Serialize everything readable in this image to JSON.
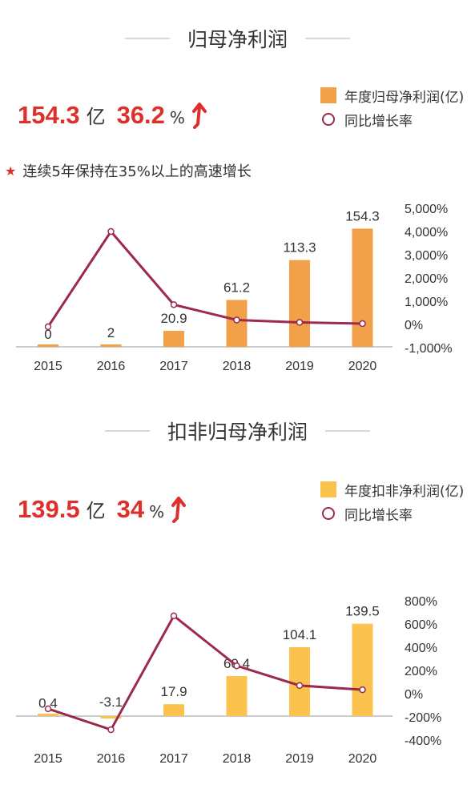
{
  "section1": {
    "title": "归母净利润",
    "kpi_value": "154.3",
    "kpi_unit": "亿",
    "kpi_growth": "36.2",
    "kpi_growth_unit": "%",
    "legend_bar": "年度归母净利润(亿)",
    "legend_line": "同比增长率",
    "note": "连续5年保持在35%以上的高速增长"
  },
  "section2": {
    "title": "扣非归母净利润",
    "kpi_value": "139.5",
    "kpi_unit": "亿",
    "kpi_growth": "34",
    "kpi_growth_unit": "%",
    "legend_bar": "年度扣非净利润(亿)",
    "legend_line": "同比增长率"
  },
  "colors": {
    "accent_red": "#dd2f2b",
    "bar1": "#f2a04a",
    "bar2": "#fcc24e",
    "line": "#9b2a4d"
  },
  "chart_data": [
    {
      "type": "bar",
      "categories": [
        "2015",
        "2016",
        "2017",
        "2018",
        "2019",
        "2020"
      ],
      "series": [
        {
          "name": "年度归母净利润(亿)",
          "type": "bar",
          "axis": "left",
          "values": [
            0,
            2,
            20.9,
            61.2,
            113.3,
            154.3
          ],
          "labels": [
            "0",
            "2",
            "20.9",
            "61.2",
            "113.3",
            "154.3"
          ]
        },
        {
          "name": "同比增长率",
          "type": "line",
          "axis": "right",
          "values": [
            -100,
            4000,
            850,
            190,
            85,
            36.2
          ]
        }
      ],
      "bar_max": 160,
      "right_axis": {
        "ticks": [
          "5,000%",
          "4,000%",
          "3,000%",
          "2,000%",
          "1,000%",
          "0%",
          "-1,000%"
        ],
        "range": [
          -1000,
          5000
        ]
      }
    },
    {
      "type": "bar",
      "categories": [
        "2015",
        "2016",
        "2017",
        "2018",
        "2019",
        "2020"
      ],
      "series": [
        {
          "name": "年度扣非净利润(亿)",
          "type": "bar",
          "axis": "left",
          "values": [
            0.4,
            -3.1,
            17.9,
            60.4,
            104.1,
            139.5
          ],
          "labels": [
            "0.4",
            "-3.1",
            "17.9",
            "60.4",
            "104.1",
            "139.5"
          ]
        },
        {
          "name": "同比增长率",
          "type": "line",
          "axis": "right",
          "values": [
            -130,
            -310,
            670,
            240,
            70,
            34
          ]
        }
      ],
      "bar_max": 150,
      "right_axis": {
        "ticks": [
          "800%",
          "600%",
          "400%",
          "200%",
          "0%",
          "-200%",
          "-400%"
        ],
        "range": [
          -400,
          800
        ]
      }
    }
  ]
}
